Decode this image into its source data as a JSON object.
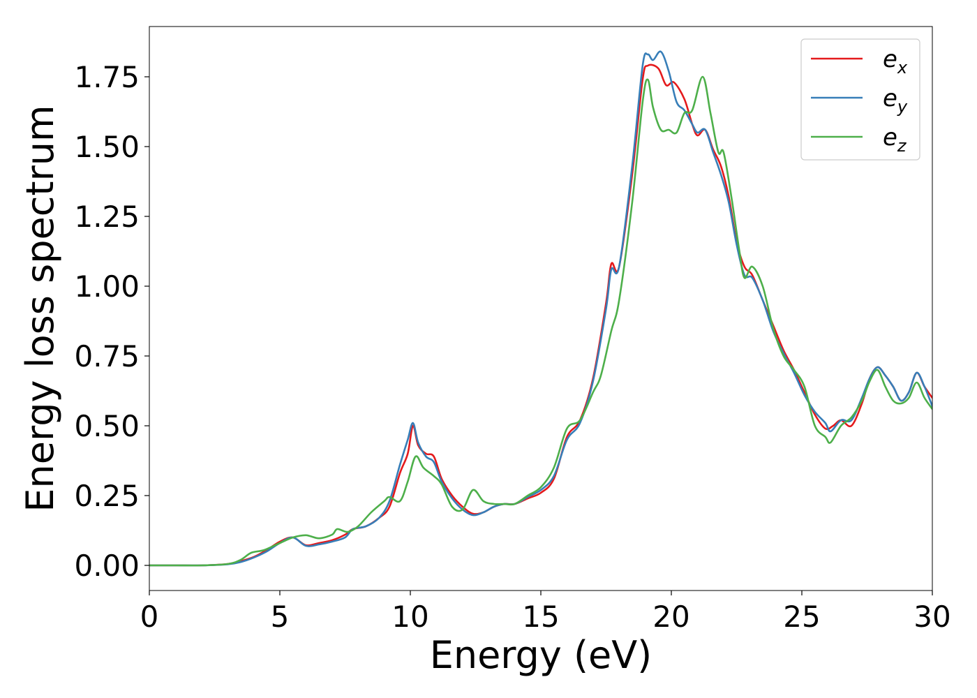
{
  "chart_data": {
    "type": "line",
    "title": "",
    "xlabel": "Energy (eV)",
    "ylabel": "Energy loss spectrum",
    "xlim": [
      0,
      30
    ],
    "ylim": [
      -0.09,
      1.93
    ],
    "xticks": [
      0,
      5,
      10,
      15,
      20,
      25,
      30
    ],
    "yticks": [
      0.0,
      0.25,
      0.5,
      0.75,
      1.0,
      1.25,
      1.5,
      1.75
    ],
    "x_tick_labels": [
      "0",
      "5",
      "10",
      "15",
      "20",
      "25",
      "30"
    ],
    "y_tick_labels": [
      "0.00",
      "0.25",
      "0.50",
      "0.75",
      "1.00",
      "1.25",
      "1.50",
      "1.75"
    ],
    "grid": false,
    "legend_position": "top-right",
    "series": [
      {
        "name": "e_x",
        "legend_base": "e",
        "legend_sub": "x",
        "color": "#e41a1c",
        "points": [
          [
            0,
            0
          ],
          [
            1,
            0
          ],
          [
            2,
            0
          ],
          [
            3,
            0.005
          ],
          [
            3.5,
            0.015
          ],
          [
            4,
            0.03
          ],
          [
            4.5,
            0.055
          ],
          [
            5,
            0.085
          ],
          [
            5.5,
            0.1
          ],
          [
            6,
            0.072
          ],
          [
            6.5,
            0.08
          ],
          [
            7,
            0.09
          ],
          [
            7.5,
            0.11
          ],
          [
            7.8,
            0.13
          ],
          [
            8.3,
            0.14
          ],
          [
            8.8,
            0.17
          ],
          [
            9.2,
            0.21
          ],
          [
            9.6,
            0.33
          ],
          [
            9.9,
            0.4
          ],
          [
            10.1,
            0.5
          ],
          [
            10.3,
            0.43
          ],
          [
            10.6,
            0.4
          ],
          [
            10.9,
            0.39
          ],
          [
            11.2,
            0.31
          ],
          [
            11.6,
            0.25
          ],
          [
            12.0,
            0.21
          ],
          [
            12.4,
            0.185
          ],
          [
            12.8,
            0.19
          ],
          [
            13.2,
            0.21
          ],
          [
            13.6,
            0.22
          ],
          [
            14,
            0.22
          ],
          [
            14.5,
            0.24
          ],
          [
            15,
            0.26
          ],
          [
            15.5,
            0.31
          ],
          [
            16,
            0.46
          ],
          [
            16.5,
            0.52
          ],
          [
            17,
            0.67
          ],
          [
            17.5,
            0.94
          ],
          [
            17.7,
            1.08
          ],
          [
            18,
            1.07
          ],
          [
            18.5,
            1.4
          ],
          [
            18.9,
            1.74
          ],
          [
            19.1,
            1.79
          ],
          [
            19.5,
            1.78
          ],
          [
            19.8,
            1.72
          ],
          [
            20.1,
            1.73
          ],
          [
            20.5,
            1.67
          ],
          [
            20.8,
            1.58
          ],
          [
            21.0,
            1.54
          ],
          [
            21.3,
            1.56
          ],
          [
            21.6,
            1.49
          ],
          [
            21.9,
            1.43
          ],
          [
            22.2,
            1.32
          ],
          [
            22.5,
            1.16
          ],
          [
            22.8,
            1.07
          ],
          [
            23.1,
            1.04
          ],
          [
            23.5,
            0.95
          ],
          [
            23.9,
            0.86
          ],
          [
            24.3,
            0.77
          ],
          [
            24.7,
            0.7
          ],
          [
            25.1,
            0.62
          ],
          [
            25.5,
            0.54
          ],
          [
            25.9,
            0.49
          ],
          [
            26.2,
            0.5
          ],
          [
            26.5,
            0.52
          ],
          [
            26.9,
            0.5
          ],
          [
            27.3,
            0.58
          ],
          [
            27.6,
            0.67
          ],
          [
            27.9,
            0.71
          ],
          [
            28.2,
            0.68
          ],
          [
            28.5,
            0.64
          ],
          [
            28.8,
            0.59
          ],
          [
            29.1,
            0.62
          ],
          [
            29.4,
            0.69
          ],
          [
            29.7,
            0.64
          ],
          [
            30,
            0.6
          ]
        ]
      },
      {
        "name": "e_y",
        "legend_base": "e",
        "legend_sub": "y",
        "color": "#377eb8",
        "points": [
          [
            0,
            0
          ],
          [
            1,
            0
          ],
          [
            2,
            0
          ],
          [
            3,
            0.004
          ],
          [
            3.5,
            0.012
          ],
          [
            4,
            0.028
          ],
          [
            4.5,
            0.05
          ],
          [
            5,
            0.08
          ],
          [
            5.5,
            0.1
          ],
          [
            6,
            0.07
          ],
          [
            6.5,
            0.075
          ],
          [
            7,
            0.085
          ],
          [
            7.5,
            0.1
          ],
          [
            7.8,
            0.13
          ],
          [
            8.3,
            0.14
          ],
          [
            8.8,
            0.17
          ],
          [
            9.2,
            0.23
          ],
          [
            9.6,
            0.36
          ],
          [
            9.9,
            0.45
          ],
          [
            10.1,
            0.51
          ],
          [
            10.3,
            0.44
          ],
          [
            10.6,
            0.39
          ],
          [
            10.9,
            0.37
          ],
          [
            11.2,
            0.3
          ],
          [
            11.6,
            0.24
          ],
          [
            12.0,
            0.2
          ],
          [
            12.4,
            0.18
          ],
          [
            12.8,
            0.19
          ],
          [
            13.2,
            0.21
          ],
          [
            13.6,
            0.22
          ],
          [
            14,
            0.22
          ],
          [
            14.5,
            0.245
          ],
          [
            15,
            0.27
          ],
          [
            15.5,
            0.32
          ],
          [
            16,
            0.45
          ],
          [
            16.5,
            0.51
          ],
          [
            17,
            0.66
          ],
          [
            17.5,
            0.92
          ],
          [
            17.7,
            1.06
          ],
          [
            18,
            1.07
          ],
          [
            18.5,
            1.43
          ],
          [
            18.9,
            1.79
          ],
          [
            19.1,
            1.83
          ],
          [
            19.3,
            1.81
          ],
          [
            19.6,
            1.84
          ],
          [
            19.9,
            1.77
          ],
          [
            20.2,
            1.66
          ],
          [
            20.5,
            1.63
          ],
          [
            20.8,
            1.58
          ],
          [
            21.0,
            1.55
          ],
          [
            21.3,
            1.56
          ],
          [
            21.6,
            1.48
          ],
          [
            21.9,
            1.4
          ],
          [
            22.2,
            1.3
          ],
          [
            22.5,
            1.15
          ],
          [
            22.8,
            1.04
          ],
          [
            23.1,
            1.03
          ],
          [
            23.5,
            0.95
          ],
          [
            23.9,
            0.84
          ],
          [
            24.3,
            0.76
          ],
          [
            24.7,
            0.69
          ],
          [
            25.1,
            0.61
          ],
          [
            25.5,
            0.55
          ],
          [
            25.9,
            0.51
          ],
          [
            26.1,
            0.48
          ],
          [
            26.5,
            0.52
          ],
          [
            26.9,
            0.52
          ],
          [
            27.3,
            0.6
          ],
          [
            27.6,
            0.67
          ],
          [
            27.9,
            0.71
          ],
          [
            28.2,
            0.68
          ],
          [
            28.5,
            0.64
          ],
          [
            28.8,
            0.59
          ],
          [
            29.1,
            0.62
          ],
          [
            29.4,
            0.69
          ],
          [
            29.7,
            0.64
          ],
          [
            30,
            0.57
          ]
        ]
      },
      {
        "name": "e_z",
        "legend_base": "e",
        "legend_sub": "z",
        "color": "#4daf4a",
        "points": [
          [
            0,
            0
          ],
          [
            1,
            0
          ],
          [
            2,
            0
          ],
          [
            3,
            0.005
          ],
          [
            3.5,
            0.02
          ],
          [
            3.9,
            0.045
          ],
          [
            4.4,
            0.055
          ],
          [
            5,
            0.08
          ],
          [
            5.5,
            0.1
          ],
          [
            6,
            0.108
          ],
          [
            6.5,
            0.097
          ],
          [
            7,
            0.11
          ],
          [
            7.2,
            0.13
          ],
          [
            7.6,
            0.12
          ],
          [
            8.0,
            0.14
          ],
          [
            8.5,
            0.19
          ],
          [
            9.0,
            0.23
          ],
          [
            9.2,
            0.245
          ],
          [
            9.6,
            0.23
          ],
          [
            9.9,
            0.3
          ],
          [
            10.2,
            0.39
          ],
          [
            10.5,
            0.35
          ],
          [
            10.9,
            0.32
          ],
          [
            11.2,
            0.29
          ],
          [
            11.6,
            0.21
          ],
          [
            12.0,
            0.2
          ],
          [
            12.4,
            0.27
          ],
          [
            12.8,
            0.23
          ],
          [
            13.2,
            0.22
          ],
          [
            13.6,
            0.22
          ],
          [
            14,
            0.22
          ],
          [
            14.5,
            0.25
          ],
          [
            15,
            0.28
          ],
          [
            15.5,
            0.35
          ],
          [
            16,
            0.49
          ],
          [
            16.5,
            0.52
          ],
          [
            17,
            0.62
          ],
          [
            17.3,
            0.68
          ],
          [
            17.7,
            0.84
          ],
          [
            18,
            0.95
          ],
          [
            18.5,
            1.3
          ],
          [
            18.9,
            1.66
          ],
          [
            19.1,
            1.74
          ],
          [
            19.3,
            1.64
          ],
          [
            19.6,
            1.56
          ],
          [
            19.9,
            1.56
          ],
          [
            20.2,
            1.55
          ],
          [
            20.5,
            1.62
          ],
          [
            20.8,
            1.63
          ],
          [
            21.2,
            1.75
          ],
          [
            21.5,
            1.62
          ],
          [
            21.8,
            1.48
          ],
          [
            22.0,
            1.48
          ],
          [
            22.3,
            1.32
          ],
          [
            22.6,
            1.13
          ],
          [
            22.8,
            1.03
          ],
          [
            23.1,
            1.07
          ],
          [
            23.5,
            1.0
          ],
          [
            23.9,
            0.85
          ],
          [
            24.3,
            0.75
          ],
          [
            24.7,
            0.7
          ],
          [
            25.1,
            0.64
          ],
          [
            25.5,
            0.5
          ],
          [
            25.9,
            0.46
          ],
          [
            26.1,
            0.44
          ],
          [
            26.5,
            0.5
          ],
          [
            26.9,
            0.53
          ],
          [
            27.3,
            0.59
          ],
          [
            27.6,
            0.66
          ],
          [
            27.9,
            0.7
          ],
          [
            28.2,
            0.64
          ],
          [
            28.5,
            0.59
          ],
          [
            28.8,
            0.58
          ],
          [
            29.1,
            0.6
          ],
          [
            29.4,
            0.655
          ],
          [
            29.7,
            0.6
          ],
          [
            30,
            0.56
          ]
        ]
      }
    ]
  }
}
